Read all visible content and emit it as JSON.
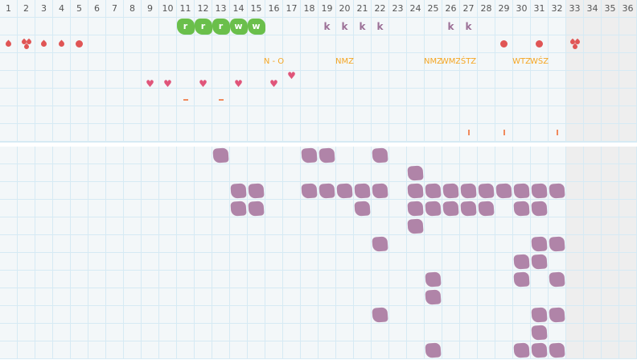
{
  "columns": [
    1,
    2,
    3,
    4,
    5,
    6,
    7,
    8,
    9,
    10,
    11,
    12,
    13,
    14,
    15,
    16,
    17,
    18,
    19,
    20,
    21,
    22,
    23,
    24,
    25,
    26,
    27,
    28,
    29,
    30,
    31,
    32,
    33,
    34,
    35,
    36
  ],
  "shaded_columns": [
    33,
    34,
    35,
    36
  ],
  "colors": {
    "sticker": "#6abf4b",
    "k": "#9b6f96",
    "bleeding": "#e05555",
    "label": "#f5a623",
    "heart": "#e0557a",
    "mark": "#f08a5d",
    "blob": "#b084a8"
  },
  "top_rows": [
    {
      "type": "sticker",
      "items": [
        {
          "col": 11,
          "text": "r"
        },
        {
          "col": 12,
          "text": "r"
        },
        {
          "col": 13,
          "text": "r"
        },
        {
          "col": 14,
          "text": "w"
        },
        {
          "col": 15,
          "text": "w"
        },
        {
          "col": 19,
          "text": "k",
          "style": "k"
        },
        {
          "col": 20,
          "text": "k",
          "style": "k"
        },
        {
          "col": 21,
          "text": "k",
          "style": "k"
        },
        {
          "col": 22,
          "text": "k",
          "style": "k"
        },
        {
          "col": 26,
          "text": "k",
          "style": "k"
        },
        {
          "col": 27,
          "text": "k",
          "style": "k"
        }
      ]
    },
    {
      "type": "bleeding",
      "items": [
        {
          "col": 1,
          "icon": "drop-icon"
        },
        {
          "col": 2,
          "icon": "drops-heavy-icon"
        },
        {
          "col": 3,
          "icon": "drop-icon"
        },
        {
          "col": 4,
          "icon": "drop-icon"
        },
        {
          "col": 5,
          "icon": "dot-icon"
        },
        {
          "col": 29,
          "icon": "dot-icon"
        },
        {
          "col": 31,
          "icon": "dot-icon"
        },
        {
          "col": 33,
          "icon": "drops-heavy-icon"
        }
      ]
    },
    {
      "type": "label",
      "items": [
        {
          "col": 16,
          "text": "N - O"
        },
        {
          "col": 20,
          "text": "NMZ"
        },
        {
          "col": 25,
          "text": "NMZ"
        },
        {
          "col": 26,
          "text": "WMZ"
        },
        {
          "col": 27,
          "text": "ŚTZ"
        },
        {
          "col": 30,
          "text": "WTZ"
        },
        {
          "col": 31,
          "text": "WŚZ"
        }
      ]
    },
    {
      "type": "heart",
      "items": [
        {
          "col": 9,
          "pos": "low"
        },
        {
          "col": 10,
          "pos": "low"
        },
        {
          "col": 12,
          "pos": "low"
        },
        {
          "col": 14,
          "pos": "low"
        },
        {
          "col": 16,
          "pos": "low"
        },
        {
          "col": 17,
          "pos": "high"
        }
      ]
    },
    {
      "type": "dash",
      "items": [
        {
          "col": 11
        },
        {
          "col": 13
        }
      ]
    },
    {
      "type": "empty",
      "items": []
    },
    {
      "type": "tick",
      "items": [
        {
          "col": 27
        },
        {
          "col": 29
        },
        {
          "col": 32
        }
      ]
    }
  ],
  "bottom_rows": [
    [
      13,
      18,
      19,
      22
    ],
    [
      24
    ],
    [
      14,
      15,
      18,
      19,
      20,
      21,
      22,
      24,
      25,
      26,
      27,
      28,
      29,
      30,
      31,
      32
    ],
    [
      14,
      15,
      21,
      24,
      25,
      26,
      27,
      28,
      30,
      31
    ],
    [
      24
    ],
    [
      22,
      31,
      32
    ],
    [
      30,
      31
    ],
    [
      25,
      30,
      32
    ],
    [
      25
    ],
    [
      22,
      31,
      32
    ],
    [
      31
    ],
    [
      25,
      30,
      31,
      32
    ]
  ]
}
